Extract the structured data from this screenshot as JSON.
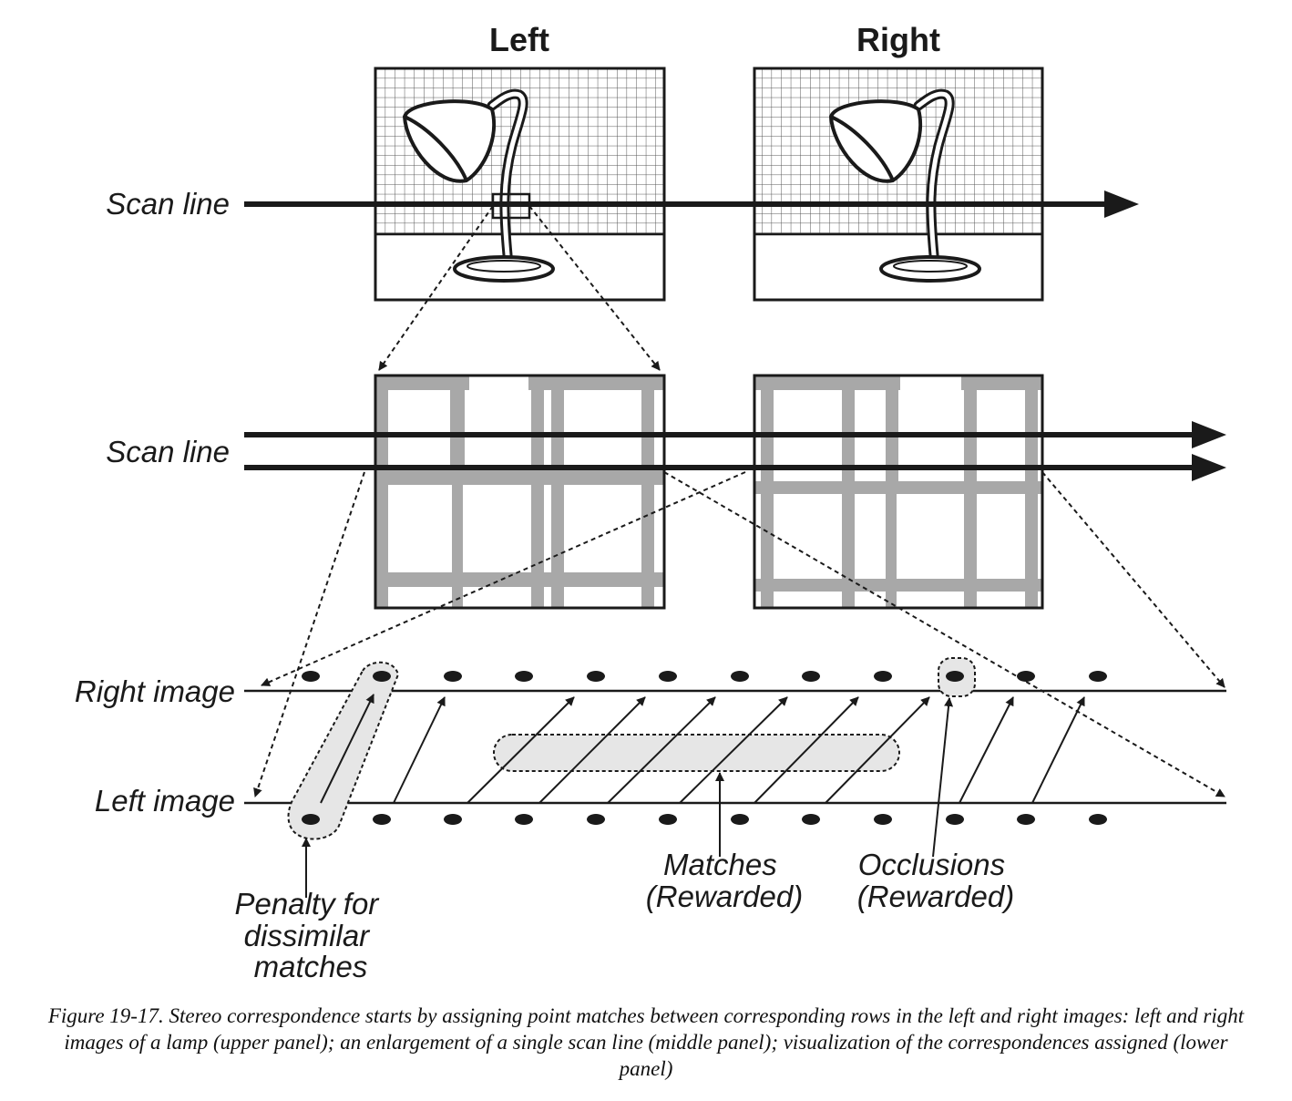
{
  "panels": {
    "left_title": "Left",
    "right_title": "Right"
  },
  "labels": {
    "scan_line_top": "Scan line",
    "scan_line_middle": "Scan line",
    "right_image": "Right image",
    "left_image": "Left image"
  },
  "annotations": {
    "penalty": [
      "Penalty for",
      "dissimilar",
      "matches"
    ],
    "matches": [
      "Matches",
      "(Rewarded)"
    ],
    "occlusions": [
      "Occlusions",
      "(Rewarded)"
    ]
  },
  "caption": "Figure 19-17. Stereo correspondence starts by assigning point matches between corresponding rows in the left and right images: left and right images of a lamp (upper panel); an enlargement of a single scan line (middle panel); visualization of the correspondences assigned (lower panel)",
  "colors": {
    "ink": "#1a1a1a",
    "grid": "#555555",
    "gray_bars": "#a8a8a8",
    "highlight_fill": "#e6e6e6"
  }
}
